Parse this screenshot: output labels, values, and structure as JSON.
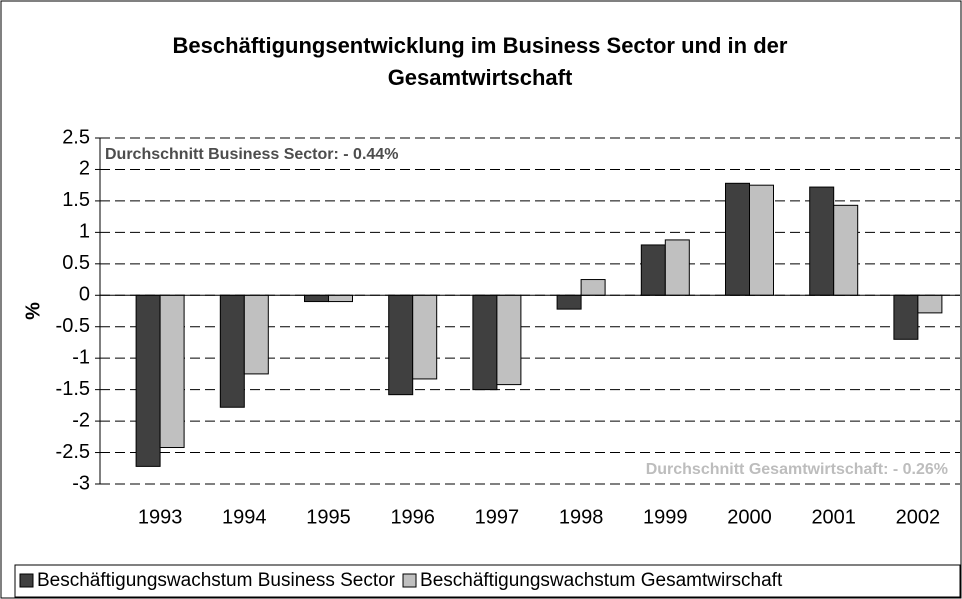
{
  "chart_data": {
    "type": "bar",
    "title": "Beschäftigungsentwicklung im Business Sector und in der Gesamtwirtschaft",
    "y_label": "%",
    "annotations": [
      "Durchschnitt Business Sector: - 0.44%",
      "Durchschnitt Gesamtwirtschaft: - 0.26%"
    ],
    "categories": [
      "1993",
      "1994",
      "1995",
      "1996",
      "1997",
      "1998",
      "1999",
      "2000",
      "2001",
      "2002"
    ],
    "series": [
      {
        "name": "Beschäftigungswachstum Business Sector",
        "color": "#404040",
        "values": [
          -2.72,
          -1.78,
          -0.1,
          -1.58,
          -1.5,
          -0.22,
          0.8,
          1.78,
          1.72,
          -0.7
        ]
      },
      {
        "name": "Beschäftigungswachstum Gesamtwirschaft",
        "color": "#c0c0c0",
        "values": [
          -2.42,
          -1.25,
          -0.1,
          -1.33,
          -1.42,
          0.25,
          0.88,
          1.75,
          1.43,
          -0.28
        ]
      }
    ],
    "ylim": [
      -3,
      2.5
    ],
    "yticks": [
      2.5,
      2,
      1.5,
      1,
      0.5,
      0,
      -0.5,
      -1,
      -1.5,
      -2,
      -2.5,
      -3
    ],
    "grid": true
  }
}
